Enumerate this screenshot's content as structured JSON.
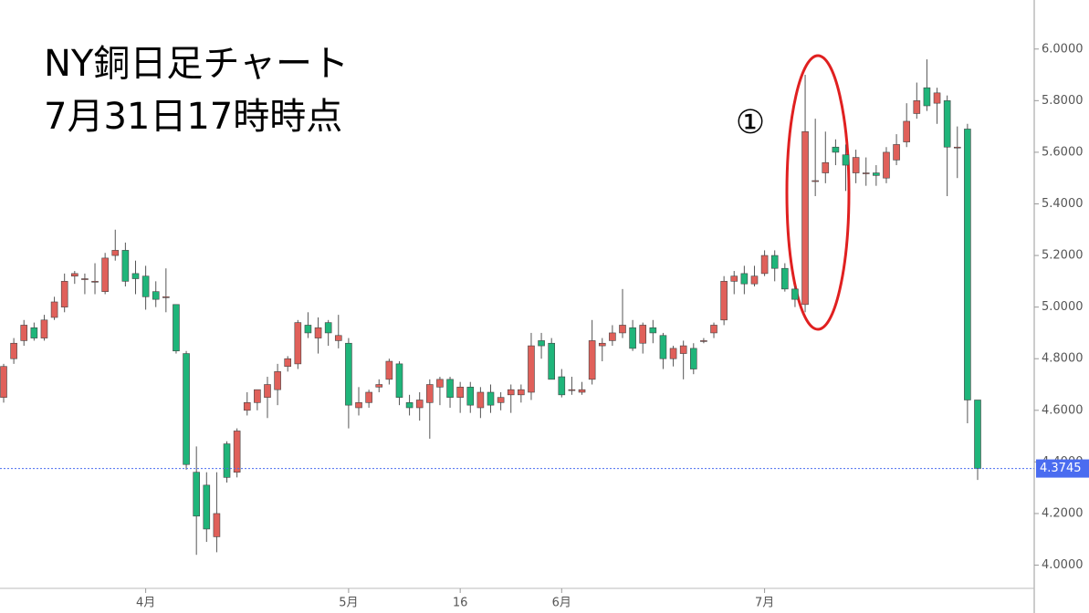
{
  "chart_data": {
    "type": "candlestick",
    "title": "NY銅日足チャート",
    "subtitle": "7月31日17時時点",
    "annotation": "①",
    "categories": [
      null,
      null,
      null,
      null,
      null,
      null,
      null,
      null,
      null,
      null,
      null,
      null,
      null,
      null,
      "4月",
      null,
      null,
      null,
      null,
      null,
      null,
      null,
      null,
      null,
      null,
      null,
      null,
      null,
      null,
      null,
      null,
      null,
      null,
      null,
      "5月",
      null,
      null,
      null,
      null,
      null,
      null,
      null,
      null,
      null,
      null,
      "16",
      null,
      null,
      null,
      null,
      null,
      null,
      null,
      null,
      null,
      "6月",
      null,
      null,
      null,
      null,
      null,
      null,
      null,
      null,
      null,
      null,
      null,
      null,
      null,
      null,
      null,
      null,
      null,
      null,
      null,
      "7月",
      null,
      null,
      null,
      null,
      null,
      null,
      null,
      null,
      null,
      null,
      null,
      null,
      null,
      null,
      null,
      null,
      null,
      null,
      null,
      null,
      null
    ],
    "series": [
      {
        "open": [
          4.65,
          4.8,
          4.87,
          4.92,
          4.88,
          4.96,
          5.0,
          5.12,
          5.11,
          5.1,
          5.06,
          5.2,
          5.22,
          5.13,
          5.12,
          5.06,
          5.04,
          5.01,
          4.82,
          4.36,
          4.31,
          4.11,
          4.47,
          4.36,
          4.6,
          4.63,
          4.65,
          4.68,
          4.77,
          4.78,
          4.93,
          4.88,
          4.94,
          4.87,
          4.86,
          4.61,
          4.63,
          4.69,
          4.72,
          4.78,
          4.63,
          4.61,
          4.63,
          4.69,
          4.72,
          4.65,
          4.69,
          4.61,
          4.67,
          4.63,
          4.66,
          4.66,
          4.67,
          4.87,
          4.86,
          4.73,
          4.68,
          4.67,
          4.72,
          4.85,
          4.87,
          4.9,
          4.92,
          4.86,
          4.92,
          4.89,
          4.8,
          4.82,
          4.84,
          4.87,
          4.9,
          4.95,
          5.1,
          5.13,
          5.09,
          5.13,
          5.2,
          5.15,
          5.07,
          5.01,
          5.49,
          5.52,
          5.62,
          5.59,
          5.52,
          5.52,
          5.52,
          5.5,
          5.57,
          5.64,
          5.75,
          5.85,
          5.79,
          5.8,
          5.62,
          5.69,
          4.64
        ],
        "high": [
          4.78,
          4.88,
          4.95,
          4.94,
          4.97,
          5.04,
          5.13,
          5.14,
          5.13,
          5.17,
          5.21,
          5.3,
          5.25,
          5.18,
          5.16,
          5.1,
          5.15,
          5.01,
          4.83,
          4.46,
          4.36,
          4.36,
          4.48,
          4.53,
          4.67,
          4.68,
          4.73,
          4.78,
          4.81,
          4.95,
          4.98,
          4.96,
          4.95,
          4.97,
          4.88,
          4.69,
          4.68,
          4.72,
          4.8,
          4.79,
          4.66,
          4.67,
          4.72,
          4.73,
          4.73,
          4.71,
          4.71,
          4.69,
          4.7,
          4.67,
          4.7,
          4.7,
          4.9,
          4.9,
          4.88,
          4.76,
          4.73,
          4.71,
          4.95,
          4.88,
          4.93,
          5.07,
          4.95,
          4.94,
          4.95,
          4.9,
          4.85,
          4.87,
          4.86,
          4.88,
          4.94,
          5.12,
          5.14,
          5.16,
          5.16,
          5.22,
          5.22,
          5.17,
          5.08,
          5.9,
          5.73,
          5.68,
          5.65,
          5.63,
          5.61,
          5.58,
          5.55,
          5.62,
          5.67,
          5.79,
          5.87,
          5.96,
          5.85,
          5.82,
          5.7,
          5.71,
          4.64
        ],
        "low": [
          4.63,
          4.78,
          4.85,
          4.87,
          4.87,
          4.95,
          4.98,
          5.09,
          5.05,
          5.05,
          5.05,
          5.18,
          5.08,
          5.05,
          4.99,
          5.0,
          4.98,
          4.82,
          4.37,
          4.04,
          4.09,
          4.05,
          4.32,
          4.34,
          4.58,
          4.6,
          4.57,
          4.62,
          4.75,
          4.76,
          4.88,
          4.82,
          4.85,
          4.84,
          4.53,
          4.58,
          4.61,
          4.67,
          4.7,
          4.62,
          4.58,
          4.56,
          4.49,
          4.62,
          4.61,
          4.59,
          4.59,
          4.57,
          4.59,
          4.6,
          4.59,
          4.63,
          4.64,
          4.8,
          4.72,
          4.65,
          4.66,
          4.66,
          4.7,
          4.79,
          4.85,
          4.88,
          4.83,
          4.82,
          4.86,
          4.76,
          4.77,
          4.72,
          4.74,
          4.86,
          4.88,
          4.93,
          5.05,
          5.05,
          5.08,
          5.12,
          5.1,
          5.06,
          5.0,
          4.98,
          5.43,
          5.48,
          5.55,
          5.45,
          5.48,
          5.47,
          5.47,
          5.48,
          5.55,
          5.62,
          5.73,
          5.76,
          5.71,
          5.43,
          5.5,
          4.55,
          4.33
        ],
        "close": [
          4.77,
          4.86,
          4.93,
          4.88,
          4.95,
          5.02,
          5.1,
          5.13,
          5.11,
          5.1,
          5.19,
          5.22,
          5.1,
          5.11,
          5.04,
          5.03,
          5.04,
          4.83,
          4.39,
          4.19,
          4.14,
          4.2,
          4.34,
          4.52,
          4.63,
          4.68,
          4.7,
          4.75,
          4.8,
          4.94,
          4.9,
          4.92,
          4.9,
          4.89,
          4.62,
          4.63,
          4.67,
          4.7,
          4.79,
          4.65,
          4.61,
          4.64,
          4.7,
          4.72,
          4.65,
          4.69,
          4.62,
          4.67,
          4.62,
          4.65,
          4.68,
          4.68,
          4.85,
          4.85,
          4.72,
          4.66,
          4.68,
          4.68,
          4.87,
          4.86,
          4.9,
          4.93,
          4.84,
          4.93,
          4.9,
          4.8,
          4.84,
          4.85,
          4.76,
          4.87,
          4.93,
          5.1,
          5.12,
          5.09,
          5.12,
          5.2,
          5.15,
          5.07,
          5.03,
          5.68,
          5.49,
          5.56,
          5.6,
          5.55,
          5.58,
          5.52,
          5.51,
          5.6,
          5.63,
          5.72,
          5.8,
          5.78,
          5.83,
          5.62,
          5.62,
          4.64,
          4.3745
        ],
        "up_color": "#e0605a",
        "down_color": "#1fb57a"
      }
    ],
    "ylim": [
      3.91,
      6.19
    ],
    "yticks": [
      {
        "value": 4.0,
        "label": "4.0000"
      },
      {
        "value": 4.2,
        "label": "4.2000"
      },
      {
        "value": 4.4,
        "label": "4.4000"
      },
      {
        "value": 4.6,
        "label": "4.6000"
      },
      {
        "value": 4.8,
        "label": "4.8000"
      },
      {
        "value": 5.0,
        "label": "5.0000"
      },
      {
        "value": 5.2,
        "label": "5.2000"
      },
      {
        "value": 5.4,
        "label": "5.4000"
      },
      {
        "value": 5.6,
        "label": "5.6000"
      },
      {
        "value": 5.8,
        "label": "5.8000"
      },
      {
        "value": 6.0,
        "label": "6.0000"
      }
    ],
    "last_price_color": "#4a6cf0"
  }
}
